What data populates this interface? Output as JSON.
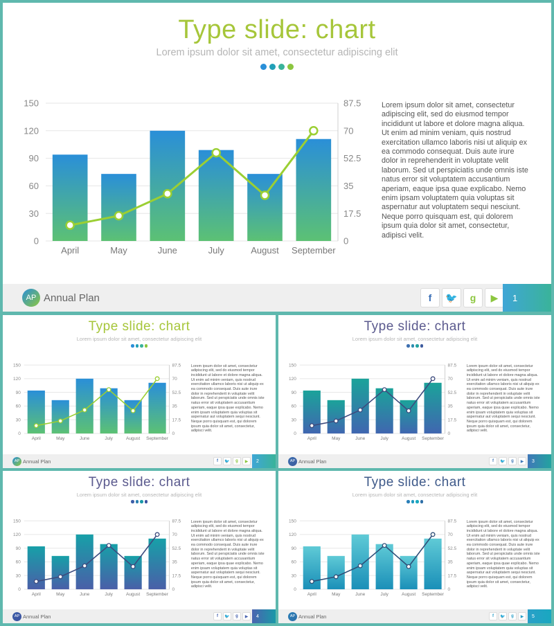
{
  "slides": [
    {
      "title": "Type slide: chart",
      "subtitle": "Lorem ipsum dolor sit amet, consectetur adipiscing elit",
      "body": "Lorem ipsum dolor sit amet, consectetur adipiscing elit, sed do eiusmod tempor incididunt ut labore et dolore magna aliqua. Ut enim ad minim veniam, quis nostrud exercitation ullamco laboris nisi ut aliquip ex ea commodo consequat. Duis aute irure dolor in reprehenderit in voluptate velit laborum. Sed ut perspiciatis unde omnis iste natus error sit voluptatem accusantium aperiam, eaque ipsa quae explicabo. Nemo enim ipsam voluptatem quia voluptas sit aspernatur aut voluptatem sequi nesciunt. Neque porro quisquam est, qui dolorem ipsum quia dolor sit amet, consectetur, adipisci velit.",
      "footer_logo": "AP",
      "footer_label": "Annual Plan",
      "page_number": "1",
      "theme": {
        "title": "#a6c63a",
        "bar_top": "#2a8fd8",
        "bar_bottom": "#5cc174",
        "line": "#9bcf33",
        "marker_fill": "#ffffff",
        "page_bg": "#3fa6d6",
        "dots": [
          "#2a8fd8",
          "#21a0b8",
          "#3ab39a",
          "#8cc63f"
        ],
        "social_style": "colored"
      }
    },
    {
      "title": "Type slide: chart",
      "subtitle": "Lorem ipsum dolor sit amet, consectetur adipiscing elit",
      "body": "Lorem ipsum dolor sit amet, consectetur adipiscing elit, sed do eiusmod tempor incididunt ut labore et dolore magna aliqua. Ut enim ad minim veniam, quis nostrud exercitation ullamco laboris nisi ut aliquip ex ea commodo consequat. Duis aute irure dolor in reprehenderit in voluptate velit laborum. Sed ut perspiciatis unde omnis iste natus error sit voluptatem accusantium aperiam, eaque ipsa quae explicabo. Nemo enim ipsam voluptatem quia voluptas sit aspernatur aut voluptatem sequi nesciunt. Neque porro quisquam est, qui dolorem ipsum quia dolor sit amet, consectetur, adipisci velit.",
      "footer_logo": "AP",
      "footer_label": "Annual Plan",
      "page_number": "2",
      "theme": {
        "title": "#a6c63a",
        "bar_top": "#2a8fd8",
        "bar_bottom": "#5cc174",
        "line": "#9bcf33",
        "marker_fill": "#ffffff",
        "page_bg": "#3fa6d6",
        "dots": [
          "#2a8fd8",
          "#21a0b8",
          "#3ab39a",
          "#8cc63f"
        ],
        "social_style": "colored"
      }
    },
    {
      "title": "Type slide: chart",
      "subtitle": "Lorem ipsum dolor sit amet, consectetur adipiscing elit",
      "body": "Lorem ipsum dolor sit amet, consectetur adipiscing elit, sed do eiusmod tempor incididunt ut labore et dolore magna aliqua. Ut enim ad minim veniam, quis nostrud exercitation ullamco laboris nisi ut aliquip ex ea commodo consequat. Duis aute irure dolor in reprehenderit in voluptate velit laborum. Sed ut perspiciatis unde omnis iste natus error sit voluptatem accusantium aperiam, eaque ipsa quae explicabo. Nemo enim ipsam voluptatem quia voluptas sit aspernatur aut voluptatem sequi nesciunt. Neque porro quisquam est, qui dolorem ipsum quia dolor sit amet, consectetur, adipisci velit.",
      "footer_logo": "AP",
      "footer_label": "Annual Plan",
      "page_number": "3",
      "theme": {
        "title": "#5b5a8e",
        "bar_top": "#1ba39a",
        "bar_bottom": "#4066b0",
        "line": "#3d4b7e",
        "marker_fill": "#ffffff",
        "page_bg": "#4078b8",
        "dots": [
          "#3d6fb0",
          "#2c8db0",
          "#23a3a0",
          "#3e5c9e"
        ],
        "social_style": "mono"
      }
    },
    {
      "title": "Type slide: chart",
      "subtitle": "Lorem ipsum dolor sit amet, consectetur adipiscing elit",
      "body": "Lorem ipsum dolor sit amet, consectetur adipiscing elit, sed do eiusmod tempor incididunt ut labore et dolore magna aliqua. Ut enim ad minim veniam, quis nostrud exercitation ullamco laboris nisi ut aliquip ex ea commodo consequat. Duis aute irure dolor in reprehenderit in voluptate velit laborum. Sed ut perspiciatis unde omnis iste natus error sit voluptatem accusantium aperiam, eaque ipsa quae explicabo. Nemo enim ipsam voluptatem quia voluptas sit aspernatur aut voluptatem sequi nesciunt. Neque porro quisquam est, qui dolorem ipsum quia dolor sit amet, consectetur, adipisci velit.",
      "footer_logo": "AP",
      "footer_label": "Annual Plan",
      "page_number": "4",
      "theme": {
        "title": "#5b5a8e",
        "bar_top": "#17a0a8",
        "bar_bottom": "#4a5fa8",
        "line": "#3d4b7e",
        "marker_fill": "#ffffff",
        "page_bg": "#4a64b0",
        "dots": [
          "#3d5ea8",
          "#2a7fb0",
          "#1a98a8",
          "#3b52a0"
        ],
        "social_style": "mono"
      }
    },
    {
      "title": "Type slide: chart",
      "subtitle": "Lorem ipsum dolor sit amet, consectetur adipiscing elit",
      "body": "Lorem ipsum dolor sit amet, consectetur adipiscing elit, sed do eiusmod tempor incididunt ut labore et dolore magna aliqua. Ut enim ad minim veniam, quis nostrud exercitation ullamco laboris nisi ut aliquip ex ea commodo consequat. Duis aute irure dolor in reprehenderit in voluptate velit laborum. Sed ut perspiciatis unde omnis iste natus error sit voluptatem accusantium aperiam, eaque ipsa quae explicabo. Nemo enim ipsam voluptatem quia voluptas sit aspernatur aut voluptatem sequi nesciunt. Neque porro quisquam est, qui dolorem ipsum quia dolor sit amet, consectetur, adipisci velit.",
      "footer_logo": "AP",
      "footer_label": "Annual Plan",
      "page_number": "5",
      "theme": {
        "title": "#3f5a8a",
        "bar_top": "#5fcad6",
        "bar_bottom": "#1a8fb8",
        "line": "#2f4f78",
        "marker_fill": "#ffffff",
        "page_bg": "#2a9fc8",
        "dots": [
          "#2a7fb8",
          "#1f98c0",
          "#19a8c0",
          "#2e6fa8"
        ],
        "social_style": "mono"
      }
    }
  ],
  "social_icons": [
    {
      "name": "facebook-icon",
      "glyph": "f",
      "color": "#3b6fb6"
    },
    {
      "name": "twitter-icon",
      "glyph": "🐦",
      "color": "#2aa3d8"
    },
    {
      "name": "google-plus-icon",
      "glyph": "g",
      "color": "#8cc63f"
    },
    {
      "name": "youtube-icon",
      "glyph": "▶",
      "color": "#8cc63f"
    }
  ],
  "chart_data": {
    "type": "bar",
    "categories": [
      "April",
      "May",
      "June",
      "July",
      "August",
      "September"
    ],
    "series": [
      {
        "values": [
          94,
          73,
          120,
          99,
          73,
          111
        ],
        "axis": "left"
      },
      {
        "values": [
          10,
          16,
          30,
          56,
          29,
          70
        ],
        "axis": "right",
        "type": "line"
      }
    ],
    "ylim": [
      0,
      150
    ],
    "yticks": [
      "0",
      "30",
      "60",
      "90",
      "120",
      "150"
    ],
    "y2lim": [
      0,
      87.5
    ],
    "y2ticks": [
      "0",
      "17.5",
      "35",
      "52.5",
      "70",
      "87.5"
    ],
    "grid": true,
    "legend": "none"
  }
}
